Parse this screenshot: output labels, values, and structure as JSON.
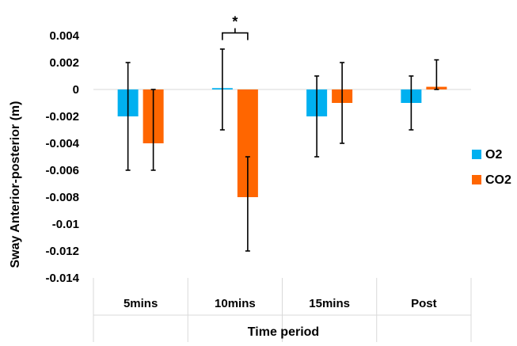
{
  "chart_data": {
    "type": "bar",
    "xlabel": "Time period",
    "ylabel": "Sway Anterior-posterior (m)",
    "categories": [
      "5mins",
      "10mins",
      "15mins",
      "Post"
    ],
    "ylim": [
      -0.014,
      0.004
    ],
    "yticks": [
      0.004,
      0.002,
      0,
      -0.002,
      -0.004,
      -0.006,
      -0.008,
      -0.01,
      -0.012,
      -0.014
    ],
    "ytick_labels": [
      "0.004",
      "0.002",
      "0",
      "-0.002",
      "-0.004",
      "-0.006",
      "-0.008",
      "-0.01",
      "-0.012",
      "-0.014"
    ],
    "grid": false,
    "legend_position": "right",
    "series": [
      {
        "name": "O2",
        "color": "#00B0F0",
        "values": [
          -0.002,
          0.0001,
          -0.002,
          -0.001
        ],
        "error_low": [
          -0.006,
          -0.003,
          -0.005,
          -0.003
        ],
        "error_high": [
          0.002,
          0.003,
          0.001,
          0.001
        ]
      },
      {
        "name": "CO2",
        "color": "#FF6600",
        "values": [
          -0.004,
          -0.008,
          -0.001,
          0.0002
        ],
        "error_low": [
          -0.006,
          -0.012,
          -0.004,
          0.0
        ],
        "error_high": [
          0.0,
          -0.005,
          0.002,
          0.0022
        ]
      }
    ],
    "annotations": [
      {
        "text": "*",
        "category": "10mins",
        "type": "significance-bracket",
        "y": 0.0042
      }
    ]
  }
}
